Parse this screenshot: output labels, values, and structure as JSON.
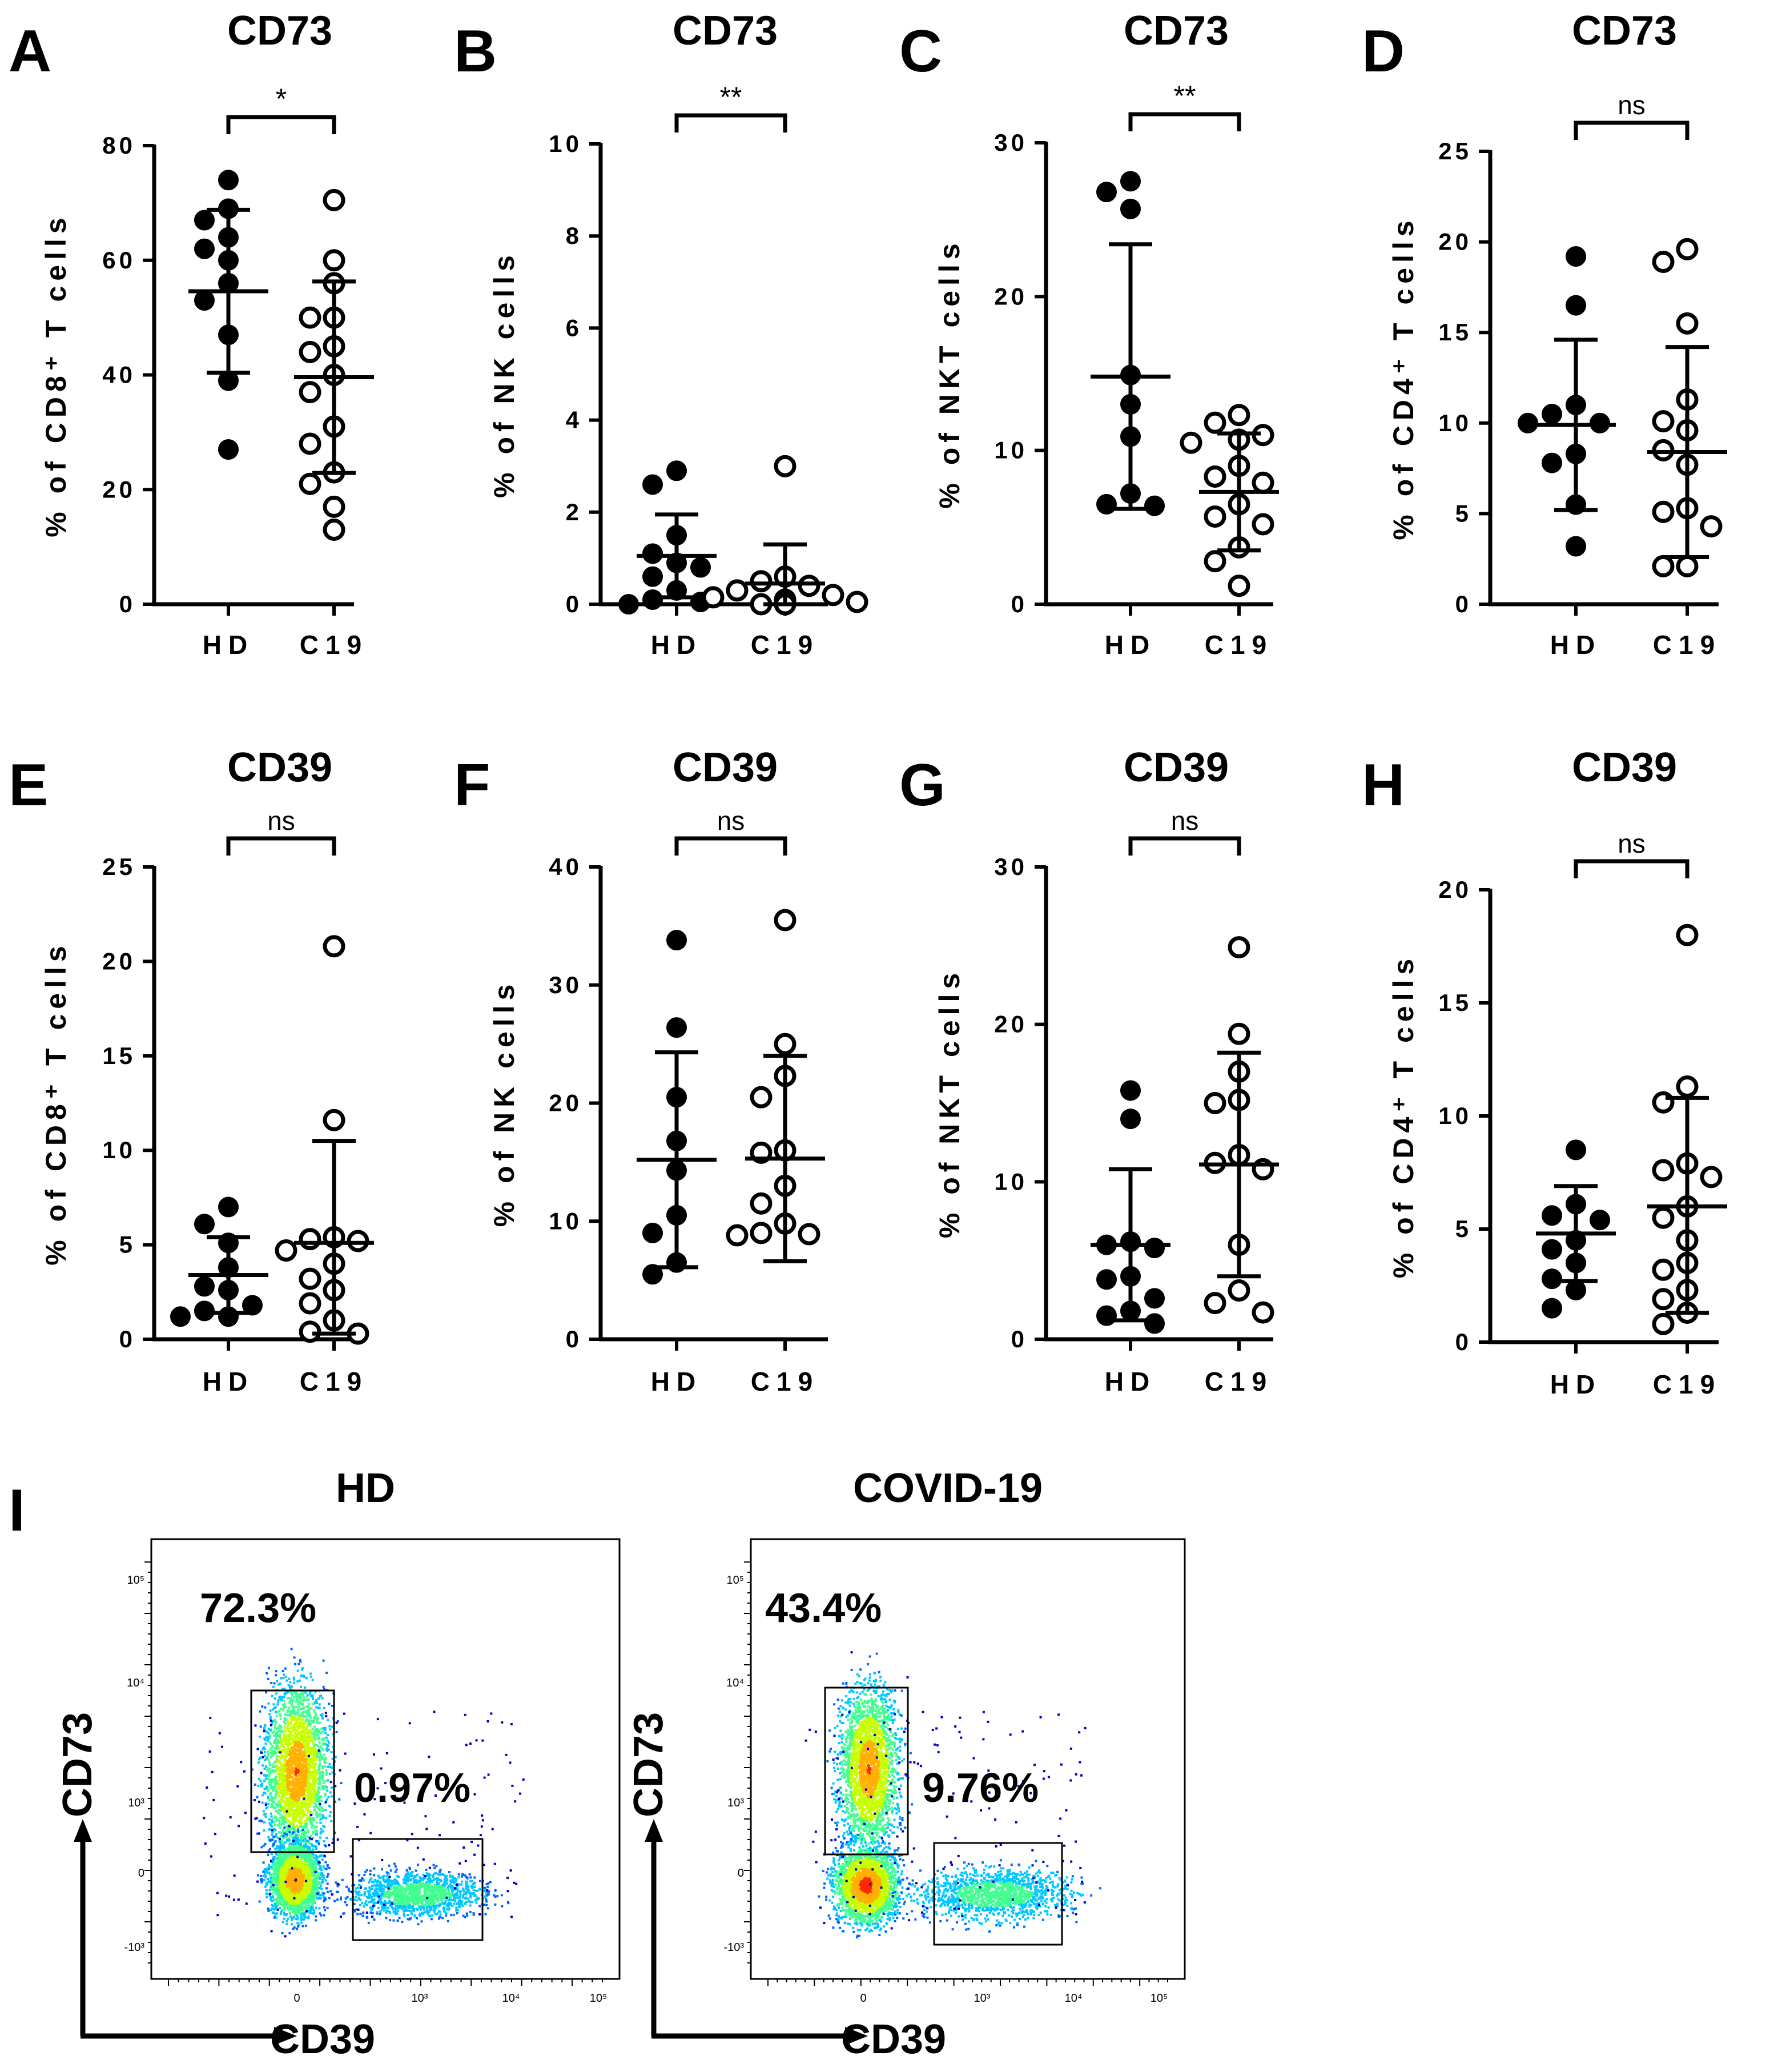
{
  "panel_i": {
    "letter": "I",
    "x_axis_label": "CD39",
    "y_axis_label": "CD73",
    "x_tick_labels": [
      "0",
      "10³",
      "10⁴",
      "10⁵"
    ],
    "y_tick_labels": [
      "10⁵",
      "10⁴",
      "10³",
      "0",
      "-10³"
    ],
    "plots": [
      {
        "title": "HD",
        "q1_percent": "72.3%",
        "q2_percent": "0.97%"
      },
      {
        "title": "COVID-19",
        "q1_percent": "43.4%",
        "q2_percent": "9.76%"
      }
    ]
  },
  "chart_data": [
    {
      "type": "scatter",
      "panel": "A",
      "title": "CD73",
      "ylabel": "% of CD8⁺ T cells",
      "categories": [
        "HD",
        "C19"
      ],
      "ylim": [
        0,
        80
      ],
      "yticks": [
        0,
        20,
        40,
        60,
        80
      ],
      "significance": "*",
      "series": [
        {
          "name": "HD",
          "filled": true,
          "values": [
            74,
            69,
            67,
            64,
            62,
            60,
            56,
            53,
            47,
            39,
            27
          ],
          "mean": 54.6,
          "sd_upper": 68.8,
          "sd_lower": 40.4
        },
        {
          "name": "C19",
          "filled": false,
          "values": [
            70.5,
            60,
            56,
            50,
            50,
            45,
            44,
            40,
            37,
            31,
            28,
            23,
            21,
            17,
            13
          ]
        }
      ],
      "mean_bars": [
        {
          "mean": 54.6,
          "upper": 68.8,
          "lower": 40.4
        },
        {
          "mean": 39.6,
          "upper": 56.3,
          "lower": 22.9
        }
      ]
    },
    {
      "type": "scatter",
      "panel": "B",
      "title": "CD73",
      "ylabel": "% of NK cells",
      "categories": [
        "HD",
        "C19"
      ],
      "ylim": [
        0,
        10
      ],
      "yticks": [
        0,
        2,
        4,
        6,
        8,
        10
      ],
      "significance": "**",
      "series": [
        {
          "name": "HD",
          "filled": true,
          "values": [
            2.9,
            2.6,
            1.5,
            1.1,
            0.9,
            0.8,
            0.6,
            0.3,
            0.1,
            0.05,
            0.0
          ]
        },
        {
          "name": "C19",
          "filled": false,
          "values": [
            3.0,
            0.6,
            0.5,
            0.4,
            0.3,
            0.2,
            0.15,
            0.1,
            0.05,
            0.05,
            0.0,
            0.0,
            0.0
          ]
        }
      ],
      "mean_bars": [
        {
          "mean": 1.05,
          "upper": 1.95,
          "lower": 0.15
        },
        {
          "mean": 0.45,
          "upper": 1.3,
          "lower": 0.0
        }
      ]
    },
    {
      "type": "scatter",
      "panel": "C",
      "title": "CD73",
      "ylabel": "% of NKT cells",
      "categories": [
        "HD",
        "C19"
      ],
      "ylim": [
        0,
        30
      ],
      "yticks": [
        0,
        10,
        20,
        30
      ],
      "significance": "**",
      "series": [
        {
          "name": "HD",
          "filled": true,
          "values": [
            27.5,
            26.8,
            25.7,
            14.9,
            13.0,
            10.9,
            7.2,
            6.5,
            6.4
          ]
        },
        {
          "name": "C19",
          "filled": false,
          "values": [
            12.3,
            11.8,
            11.0,
            10.7,
            10.5,
            9.0,
            8.3,
            7.9,
            6.5,
            5.7,
            5.2,
            3.7,
            2.8,
            1.2
          ]
        }
      ],
      "mean_bars": [
        {
          "mean": 14.8,
          "upper": 23.4,
          "lower": 6.2
        },
        {
          "mean": 7.3,
          "upper": 11.1,
          "lower": 3.5
        }
      ]
    },
    {
      "type": "scatter",
      "panel": "D",
      "title": "CD73",
      "ylabel": "% of CD4⁺ T cells",
      "categories": [
        "HD",
        "C19"
      ],
      "ylim": [
        0,
        25
      ],
      "yticks": [
        0,
        5,
        10,
        15,
        20,
        25
      ],
      "significance": "ns",
      "series": [
        {
          "name": "HD",
          "filled": true,
          "values": [
            19.2,
            16.5,
            11.0,
            10.5,
            10.0,
            10.0,
            8.3,
            7.8,
            5.5,
            3.2
          ]
        },
        {
          "name": "C19",
          "filled": false,
          "values": [
            19.6,
            18.9,
            15.5,
            11.3,
            10.1,
            9.6,
            8.5,
            7.7,
            5.3,
            5.1,
            4.3,
            2.1,
            2.1
          ]
        }
      ],
      "mean_bars": [
        {
          "mean": 9.9,
          "upper": 14.6,
          "lower": 5.2
        },
        {
          "mean": 8.4,
          "upper": 14.2,
          "lower": 2.6
        }
      ]
    },
    {
      "type": "scatter",
      "panel": "E",
      "title": "CD39",
      "ylabel": "% of CD8⁺ T cells",
      "categories": [
        "HD",
        "C19"
      ],
      "ylim": [
        0,
        25
      ],
      "yticks": [
        0,
        5,
        10,
        15,
        20,
        25
      ],
      "significance": "ns",
      "series": [
        {
          "name": "HD",
          "filled": true,
          "values": [
            7.0,
            6.1,
            5.1,
            3.8,
            2.8,
            2.6,
            1.8,
            1.5,
            1.2,
            1.2
          ]
        },
        {
          "name": "C19",
          "filled": false,
          "values": [
            20.8,
            11.6,
            5.4,
            5.3,
            5.2,
            4.7,
            4.0,
            3.2,
            2.6,
            1.9,
            1.0,
            0.4,
            0.3
          ]
        }
      ],
      "mean_bars": [
        {
          "mean": 3.4,
          "upper": 5.4,
          "lower": 1.4
        },
        {
          "mean": 5.1,
          "upper": 10.5,
          "lower": 0.3
        }
      ]
    },
    {
      "type": "scatter",
      "panel": "F",
      "title": "CD39",
      "ylabel": "% of NK cells",
      "categories": [
        "HD",
        "C19"
      ],
      "ylim": [
        0,
        40
      ],
      "yticks": [
        0,
        10,
        20,
        30,
        40
      ],
      "significance": "ns",
      "series": [
        {
          "name": "HD",
          "filled": true,
          "values": [
            33.8,
            26.4,
            20.5,
            16.8,
            14.3,
            10.5,
            9.0,
            6.5,
            5.5
          ]
        },
        {
          "name": "C19",
          "filled": false,
          "values": [
            35.5,
            25.0,
            22.3,
            20.5,
            16.0,
            15.8,
            13.0,
            11.5,
            9.8,
            9.0,
            8.9,
            8.8
          ]
        }
      ],
      "mean_bars": [
        {
          "mean": 15.2,
          "upper": 24.3,
          "lower": 6.1
        },
        {
          "mean": 15.3,
          "upper": 24.0,
          "lower": 6.6
        }
      ]
    },
    {
      "type": "scatter",
      "panel": "G",
      "title": "CD39",
      "ylabel": "% of NKT cells",
      "categories": [
        "HD",
        "C19"
      ],
      "ylim": [
        0,
        30
      ],
      "yticks": [
        0,
        10,
        20,
        30
      ],
      "significance": "ns",
      "series": [
        {
          "name": "HD",
          "filled": true,
          "values": [
            15.8,
            14.0,
            6.2,
            6.0,
            5.8,
            4.0,
            3.8,
            2.6,
            1.8,
            1.5,
            1.0
          ]
        },
        {
          "name": "C19",
          "filled": false,
          "values": [
            24.9,
            19.4,
            17.0,
            15.2,
            15.0,
            11.7,
            11.2,
            10.8,
            6.0,
            3.1,
            2.3,
            1.7
          ]
        }
      ],
      "mean_bars": [
        {
          "mean": 6.0,
          "upper": 10.8,
          "lower": 1.2
        },
        {
          "mean": 11.1,
          "upper": 18.2,
          "lower": 4.0
        }
      ]
    },
    {
      "type": "scatter",
      "panel": "H",
      "title": "CD39",
      "ylabel": "% of CD4⁺ T cells",
      "categories": [
        "HD",
        "C19"
      ],
      "ylim": [
        0,
        20
      ],
      "yticks": [
        0,
        5,
        10,
        15,
        20
      ],
      "significance": "ns",
      "series": [
        {
          "name": "HD",
          "filled": true,
          "values": [
            8.5,
            6.1,
            5.6,
            5.4,
            4.5,
            4.1,
            3.5,
            2.8,
            2.3,
            1.5
          ]
        },
        {
          "name": "C19",
          "filled": false,
          "values": [
            18.0,
            11.3,
            10.6,
            7.9,
            7.6,
            7.3,
            6.0,
            5.5,
            4.5,
            3.5,
            3.2,
            2.3,
            1.9,
            1.3,
            0.8
          ]
        }
      ],
      "mean_bars": [
        {
          "mean": 4.8,
          "upper": 6.9,
          "lower": 2.7
        },
        {
          "mean": 6.0,
          "upper": 10.8,
          "lower": 1.3
        }
      ]
    }
  ]
}
